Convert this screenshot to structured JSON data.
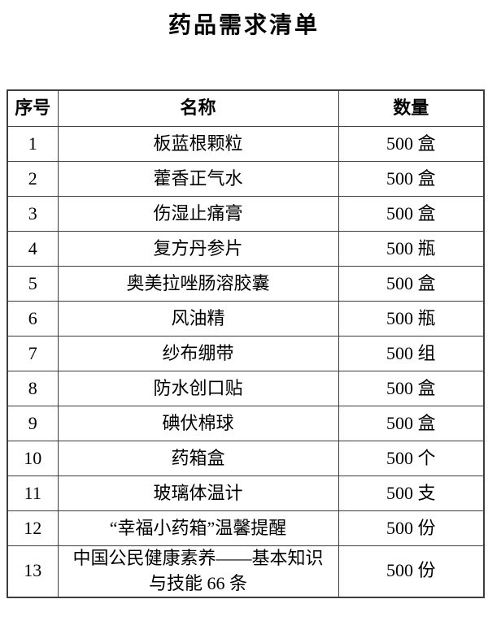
{
  "page": {
    "title": "药品需求清单"
  },
  "table": {
    "headers": {
      "no": "序号",
      "name": "名称",
      "qty": "数量"
    },
    "rows": [
      {
        "no": "1",
        "name": "板蓝根颗粒",
        "qty": "500 盒"
      },
      {
        "no": "2",
        "name": "藿香正气水",
        "qty": "500 盒"
      },
      {
        "no": "3",
        "name": "伤湿止痛膏",
        "qty": "500 盒"
      },
      {
        "no": "4",
        "name": "复方丹参片",
        "qty": "500 瓶"
      },
      {
        "no": "5",
        "name": "奥美拉唑肠溶胶囊",
        "qty": "500 盒"
      },
      {
        "no": "6",
        "name": "风油精",
        "qty": "500 瓶"
      },
      {
        "no": "7",
        "name": "纱布绷带",
        "qty": "500 组"
      },
      {
        "no": "8",
        "name": "防水创口贴",
        "qty": "500 盒"
      },
      {
        "no": "9",
        "name": "碘伏棉球",
        "qty": "500 盒"
      },
      {
        "no": "10",
        "name": "药箱盒",
        "qty": "500 个"
      },
      {
        "no": "11",
        "name": "玻璃体温计",
        "qty": "500 支"
      },
      {
        "no": "12",
        "name": "“幸福小药箱”温馨提醒",
        "qty": "500 份"
      },
      {
        "no": "13",
        "name": "中国公民健康素养——基本知识\n与技能 66 条",
        "qty": "500 份"
      }
    ]
  },
  "colors": {
    "text": "#000000",
    "border": "#3d3d3d",
    "background": "#ffffff"
  }
}
